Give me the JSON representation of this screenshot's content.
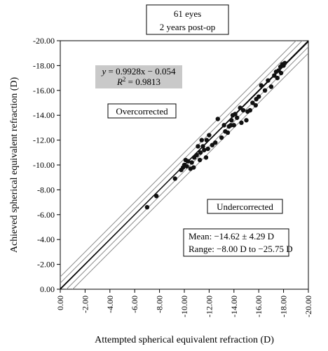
{
  "chart_data": {
    "type": "scatter",
    "title_lines": [
      "61 eyes",
      "2 years post-op"
    ],
    "xlabel": "Attempted spherical equivalent refraction (D)",
    "ylabel": "Achieved spherical equivalent refraction (D)",
    "xlim": [
      0,
      -20
    ],
    "ylim": [
      0,
      -20
    ],
    "x_ticks": [
      "0.00",
      "-2.00",
      "-4.00",
      "-6.00",
      "-8.00",
      "-10.00",
      "-12.00",
      "-14.00",
      "-16.00",
      "-18.00",
      "-20.00"
    ],
    "y_ticks": [
      "0.00",
      "-2.00",
      "-4.00",
      "-6.00",
      "-8.00",
      "-10.00",
      "-12.00",
      "-14.00",
      "-16.00",
      "-18.00",
      "-20.00"
    ],
    "regression": {
      "equation_prefix": "y",
      "equation_rhs": " = 0.9928x − 0.054",
      "r2_prefix": "R",
      "r2_rhs": " = 0.9813",
      "slope": 0.9928,
      "intercept": -0.054
    },
    "band_offsets": [
      0.5,
      1.0
    ],
    "annotations": {
      "overcorrected": "Overcorrected",
      "undercorrected": "Undercorrected",
      "mean": "Mean: −14.62 ± 4.29 D",
      "range": "Range: −8.00 D to −25.75 D"
    },
    "points": [
      [
        -7.0,
        -6.6
      ],
      [
        -7.75,
        -7.5
      ],
      [
        -9.25,
        -8.9
      ],
      [
        -9.75,
        -9.6
      ],
      [
        -9.9,
        -9.8
      ],
      [
        -10.0,
        -10.0
      ],
      [
        -10.1,
        -10.4
      ],
      [
        -10.2,
        -9.9
      ],
      [
        -10.3,
        -10.3
      ],
      [
        -10.5,
        -9.7
      ],
      [
        -10.6,
        -10.2
      ],
      [
        -10.75,
        -9.8
      ],
      [
        -10.8,
        -10.6
      ],
      [
        -11.0,
        -10.8
      ],
      [
        -11.1,
        -11.5
      ],
      [
        -11.25,
        -10.4
      ],
      [
        -11.3,
        -11.0
      ],
      [
        -11.4,
        -12.0
      ],
      [
        -11.5,
        -11.5
      ],
      [
        -11.6,
        -11.2
      ],
      [
        -11.75,
        -10.6
      ],
      [
        -11.8,
        -12.0
      ],
      [
        -11.9,
        -11.3
      ],
      [
        -12.0,
        -12.4
      ],
      [
        -12.25,
        -11.6
      ],
      [
        -12.5,
        -11.8
      ],
      [
        -12.7,
        -13.7
      ],
      [
        -13.0,
        -12.2
      ],
      [
        -13.2,
        -13.2
      ],
      [
        -13.3,
        -12.7
      ],
      [
        -13.5,
        -12.6
      ],
      [
        -13.6,
        -13.1
      ],
      [
        -13.75,
        -13.2
      ],
      [
        -13.8,
        -13.6
      ],
      [
        -13.9,
        -14.0
      ],
      [
        -14.0,
        -13.2
      ],
      [
        -14.1,
        -14.1
      ],
      [
        -14.25,
        -13.8
      ],
      [
        -14.5,
        -14.6
      ],
      [
        -14.6,
        -13.4
      ],
      [
        -14.75,
        -14.4
      ],
      [
        -15.0,
        -13.6
      ],
      [
        -15.1,
        -14.3
      ],
      [
        -15.3,
        -14.4
      ],
      [
        -15.5,
        -15.0
      ],
      [
        -15.75,
        -14.8
      ],
      [
        -15.8,
        -15.3
      ],
      [
        -16.0,
        -15.5
      ],
      [
        -16.2,
        -16.4
      ],
      [
        -16.5,
        -16.0
      ],
      [
        -16.75,
        -16.8
      ],
      [
        -17.0,
        -16.3
      ],
      [
        -17.25,
        -17.2
      ],
      [
        -17.4,
        -17.5
      ],
      [
        -17.5,
        -17.0
      ],
      [
        -17.6,
        -17.6
      ],
      [
        -17.75,
        -17.9
      ],
      [
        -17.8,
        -17.4
      ],
      [
        -17.9,
        -18.1
      ],
      [
        -18.0,
        -18.0
      ],
      [
        -18.1,
        -18.2
      ]
    ]
  }
}
